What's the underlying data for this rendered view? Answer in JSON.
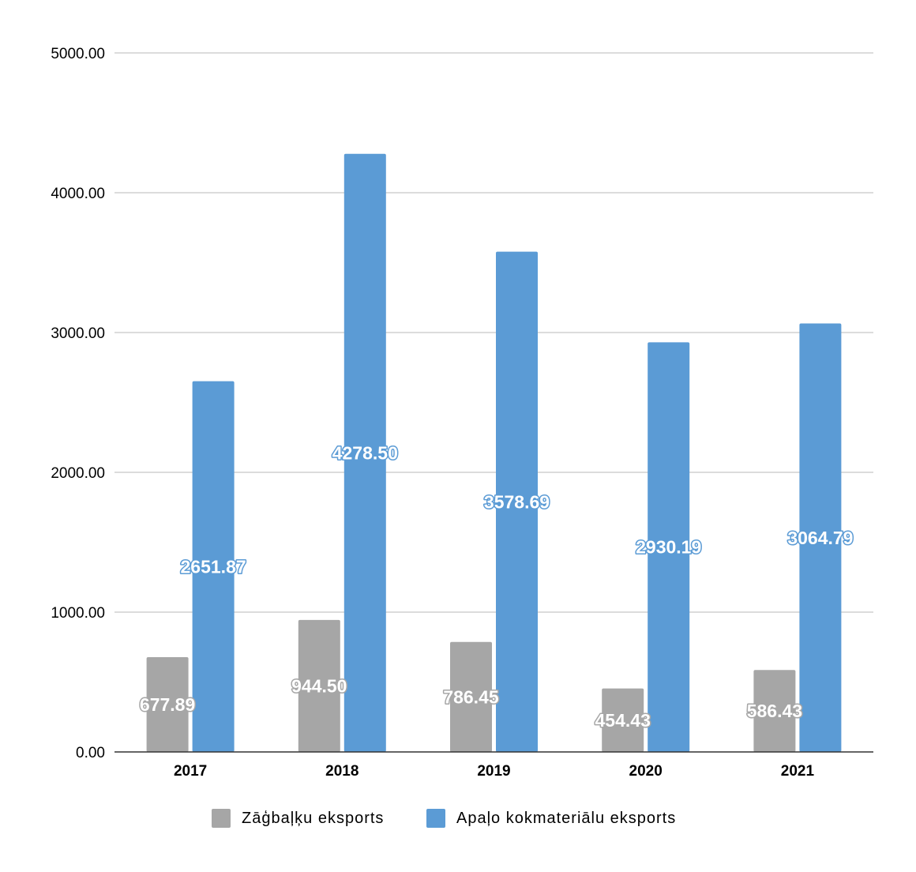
{
  "chart_data": {
    "type": "bar",
    "categories": [
      "2017",
      "2018",
      "2019",
      "2020",
      "2021"
    ],
    "series": [
      {
        "name": "Zāģbaļķu eksports",
        "color": "#a6a6a6",
        "values": [
          677.89,
          944.5,
          786.45,
          454.43,
          586.43
        ],
        "labels": [
          "677.89",
          "944.50",
          "786.45",
          "454.43",
          "586.43"
        ]
      },
      {
        "name": "Apaļo kokmateriālu eksports",
        "color": "#5b9bd5",
        "values": [
          2651.87,
          4278.5,
          3578.69,
          2930.19,
          3064.79
        ],
        "labels": [
          "2651.87",
          "4278.50",
          "3578.69",
          "2930.19",
          "3064.79"
        ]
      }
    ],
    "y_ticks": [
      "0.00",
      "1000.00",
      "2000.00",
      "3000.00",
      "4000.00",
      "5000.00"
    ],
    "ylim": [
      0,
      5000
    ],
    "grid": true,
    "legend_position": "bottom",
    "title": "",
    "xlabel": "",
    "ylabel": ""
  }
}
